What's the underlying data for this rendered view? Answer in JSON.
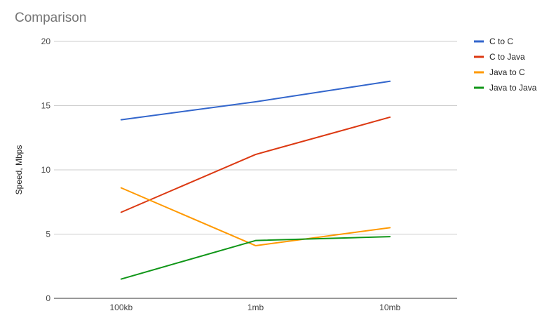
{
  "chart_data": {
    "type": "line",
    "title": "Comparison",
    "xlabel": "",
    "ylabel": "Speed, Mbps",
    "categories": [
      "100kb",
      "1mb",
      "10mb"
    ],
    "yticks": [
      0,
      5,
      10,
      15,
      20
    ],
    "ylim": [
      0,
      20
    ],
    "grid": true,
    "legend_position": "right",
    "series": [
      {
        "name": "C to C",
        "color": "#3366cc",
        "values": [
          13.9,
          15.3,
          16.9
        ]
      },
      {
        "name": "C to Java",
        "color": "#dc3912",
        "values": [
          6.7,
          11.2,
          14.1
        ]
      },
      {
        "name": "Java to C",
        "color": "#ff9900",
        "values": [
          8.6,
          4.1,
          5.5
        ]
      },
      {
        "name": "Java to Java",
        "color": "#109618",
        "values": [
          1.5,
          4.5,
          4.8
        ]
      }
    ]
  }
}
